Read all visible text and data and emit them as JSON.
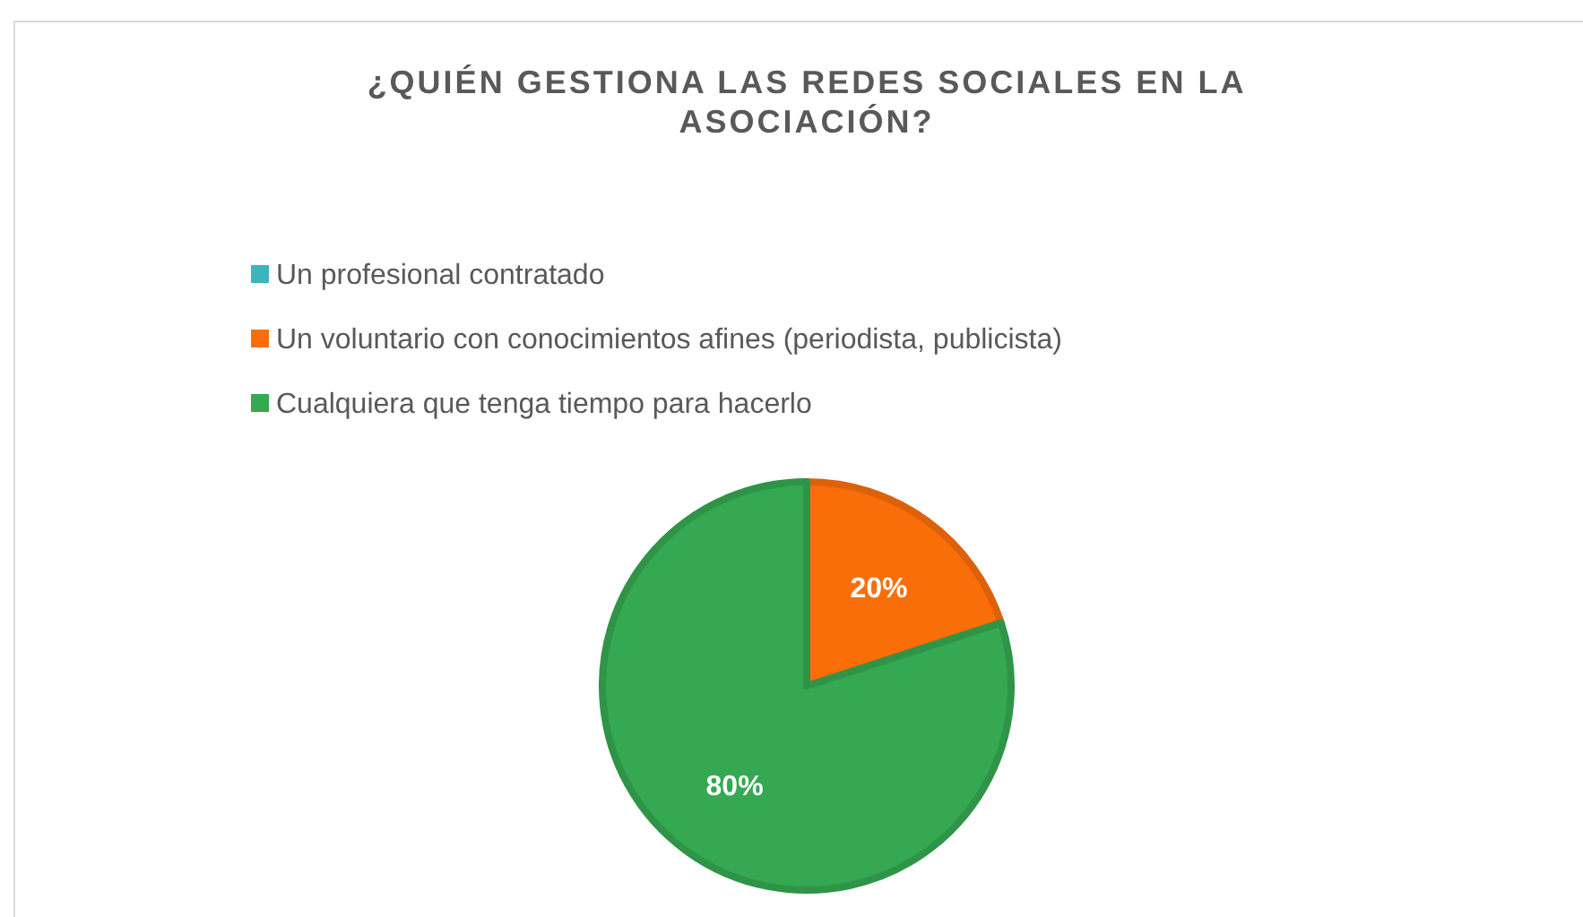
{
  "chart_data": {
    "type": "pie",
    "title": "¿QUIÉN GESTIONA LAS REDES SOCIALES EN LA ASOCIACIÓN?",
    "categories": [
      "Un profesional contratado",
      "Un voluntario con conocimientos afines (periodista, publicista)",
      "Cualquiera que tenga tiempo para hacerlo"
    ],
    "values": [
      0,
      20,
      80
    ],
    "colors": [
      "#3cb4bc",
      "#fa6e0a",
      "#35a852"
    ],
    "value_labels": [
      null,
      "20%",
      "80%"
    ],
    "legend": "top left"
  }
}
